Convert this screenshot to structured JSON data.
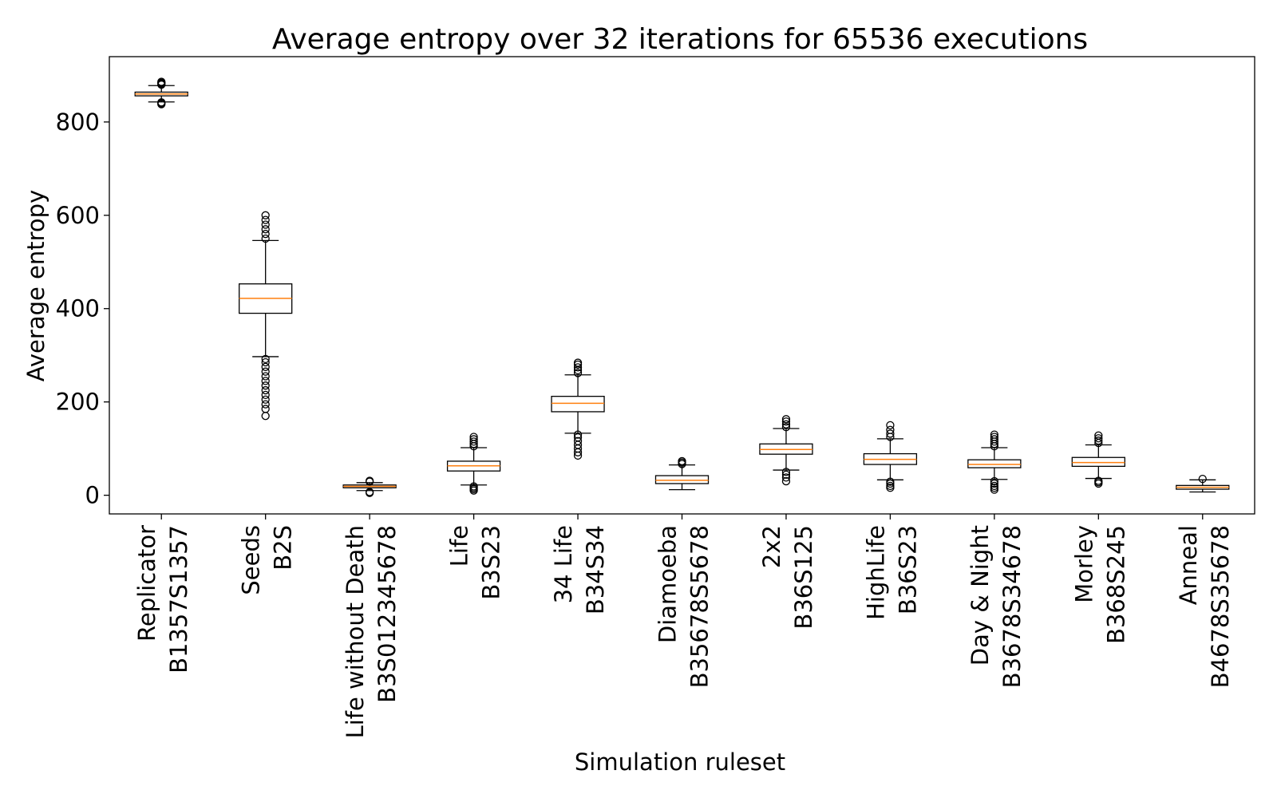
{
  "chart_data": {
    "type": "boxplot",
    "title": "Average entropy over 32 iterations for 65536 executions",
    "xlabel": "Simulation ruleset",
    "ylabel": "Average entropy",
    "ylim": [
      -40,
      940
    ],
    "yticks": [
      0,
      200,
      400,
      600,
      800
    ],
    "grid": false,
    "colors": {
      "box": "#000000",
      "median": "#ff7f0e",
      "axes": "#000000"
    },
    "categories": [
      {
        "lines": [
          "Replicator",
          "B1357S1357"
        ],
        "whisker_low": 843,
        "q1": 856,
        "median": 860,
        "q3": 864,
        "whisker_high": 878,
        "outliers": [
          838,
          840,
          842,
          880,
          882,
          884,
          886
        ]
      },
      {
        "lines": [
          "Seeds",
          "B2S"
        ],
        "whisker_low": 297,
        "q1": 390,
        "median": 422,
        "q3": 453,
        "whisker_high": 546,
        "outliers": [
          170,
          185,
          195,
          205,
          215,
          225,
          235,
          245,
          255,
          265,
          275,
          285,
          292,
          550,
          560,
          570,
          580,
          590,
          600
        ]
      },
      {
        "lines": [
          "Life without Death",
          "B3S012345678"
        ],
        "whisker_low": 10,
        "q1": 16,
        "median": 19,
        "q3": 22,
        "whisker_high": 27,
        "outliers": [
          5,
          7,
          29,
          31
        ]
      },
      {
        "lines": [
          "Life",
          "B3S23"
        ],
        "whisker_low": 22,
        "q1": 52,
        "median": 63,
        "q3": 73,
        "whisker_high": 102,
        "outliers": [
          10,
          13,
          16,
          19,
          105,
          110,
          115,
          120,
          125
        ]
      },
      {
        "lines": [
          "34 Life",
          "B34S34"
        ],
        "whisker_low": 133,
        "q1": 179,
        "median": 197,
        "q3": 212,
        "whisker_high": 258,
        "outliers": [
          85,
          92,
          100,
          108,
          116,
          124,
          130,
          262,
          268,
          274,
          280,
          284
        ]
      },
      {
        "lines": [
          "Diamoeba",
          "B35678S5678"
        ],
        "whisker_low": 12,
        "q1": 25,
        "median": 32,
        "q3": 42,
        "whisker_high": 65,
        "outliers": [
          67,
          70,
          73
        ]
      },
      {
        "lines": [
          "2x2",
          "B36S125"
        ],
        "whisker_low": 54,
        "q1": 88,
        "median": 98,
        "q3": 110,
        "whisker_high": 143,
        "outliers": [
          30,
          38,
          44,
          50,
          146,
          152,
          158,
          163
        ]
      },
      {
        "lines": [
          "HighLife",
          "B36S23"
        ],
        "whisker_low": 33,
        "q1": 66,
        "median": 77,
        "q3": 89,
        "whisker_high": 121,
        "outliers": [
          16,
          20,
          25,
          29,
          125,
          132,
          140,
          150
        ]
      },
      {
        "lines": [
          "Day & Night",
          "B3678S34678"
        ],
        "whisker_low": 34,
        "q1": 59,
        "median": 66,
        "q3": 76,
        "whisker_high": 102,
        "outliers": [
          12,
          16,
          20,
          25,
          30,
          105,
          110,
          115,
          120,
          125,
          130
        ]
      },
      {
        "lines": [
          "Morley",
          "B368S245"
        ],
        "whisker_low": 36,
        "q1": 62,
        "median": 70,
        "q3": 81,
        "whisker_high": 108,
        "outliers": [
          25,
          28,
          31,
          112,
          117,
          122,
          128
        ]
      },
      {
        "lines": [
          "Anneal",
          "B4678S35678"
        ],
        "whisker_low": 7,
        "q1": 13,
        "median": 17,
        "q3": 21,
        "whisker_high": 33,
        "outliers": [
          35
        ]
      }
    ]
  }
}
